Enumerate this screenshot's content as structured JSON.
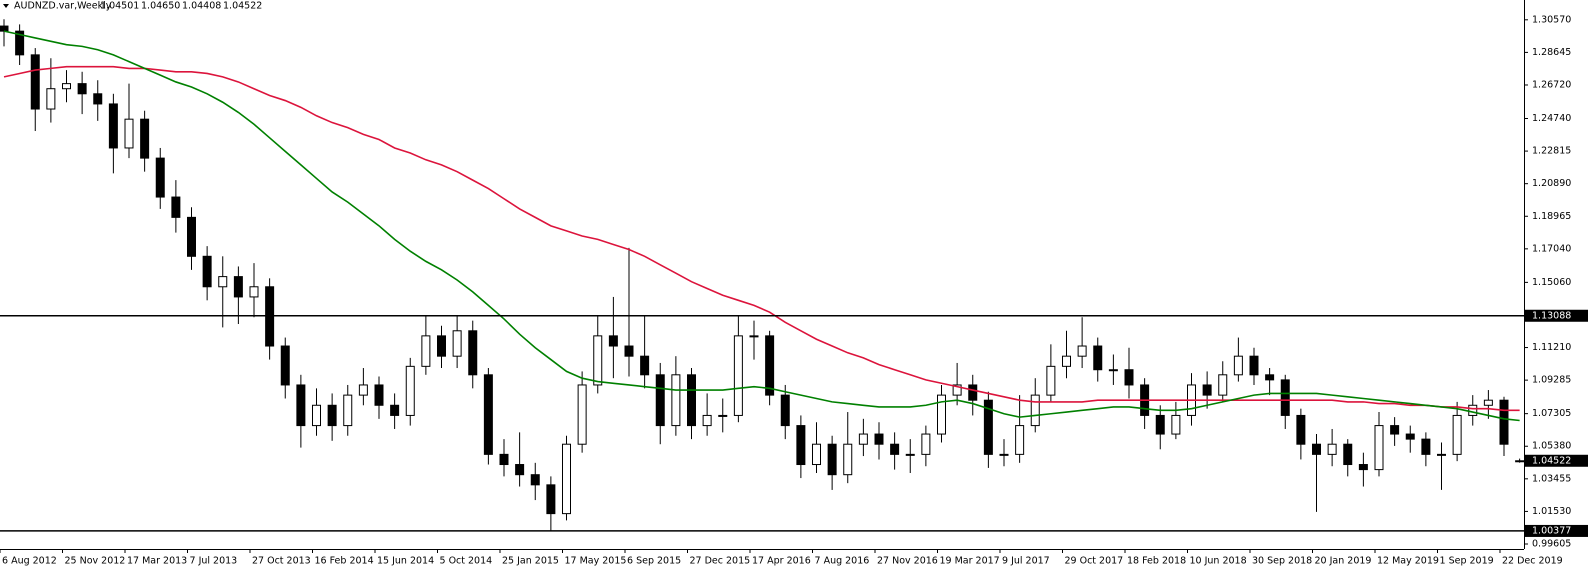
{
  "chart_data": {
    "type": "candlestick",
    "title": "AUDNZD.var,Weekly",
    "header_labels": [
      "1.04501",
      "1.04650",
      "1.04408",
      "1.04522"
    ],
    "categories": [
      "6 Aug 2012",
      null,
      null,
      null,
      "25 Nov 2012",
      null,
      null,
      null,
      "17 Mar 2013",
      null,
      null,
      null,
      "7 Jul 2013",
      null,
      null,
      null,
      "27 Oct 2013",
      null,
      null,
      null,
      "16 Feb 2014",
      null,
      null,
      null,
      "15 Jun 2014",
      null,
      null,
      null,
      "5 Oct 2014",
      null,
      null,
      null,
      "25 Jan 2015",
      null,
      null,
      null,
      "17 May 2015",
      null,
      null,
      null,
      "6 Sep 2015",
      null,
      null,
      null,
      "27 Dec 2015",
      null,
      null,
      null,
      "17 Apr 2016",
      null,
      null,
      null,
      "7 Aug 2016",
      null,
      null,
      null,
      "27 Nov 2016",
      null,
      null,
      null,
      "19 Mar 2017",
      null,
      null,
      null,
      "9 Jul 2017",
      null,
      null,
      null,
      "29 Oct 2017",
      null,
      null,
      null,
      "18 Feb 2018",
      null,
      null,
      null,
      "10 Jun 2018",
      null,
      null,
      null,
      "30 Sep 2018",
      null,
      null,
      null,
      "20 Jan 2019",
      null,
      null,
      null,
      "12 May 2019",
      null,
      null,
      null,
      "1 Sep 2019",
      null,
      null,
      null,
      "22 Dec 2019",
      null
    ],
    "open": [
      1.302,
      1.299,
      1.285,
      1.253,
      1.265,
      1.268,
      1.262,
      1.256,
      1.23,
      1.247,
      1.224,
      1.201,
      1.189,
      1.166,
      1.148,
      1.154,
      1.142,
      1.148,
      1.113,
      1.09,
      1.066,
      1.078,
      1.066,
      1.084,
      1.09,
      1.078,
      1.072,
      1.101,
      1.119,
      1.107,
      1.122,
      1.096,
      1.049,
      1.043,
      1.037,
      1.031,
      1.014,
      1.055,
      1.09,
      1.119,
      1.113,
      1.107,
      1.096,
      1.066,
      1.096,
      1.066,
      1.072,
      1.072,
      1.119,
      1.119,
      1.084,
      1.066,
      1.043,
      1.055,
      1.037,
      1.055,
      1.061,
      1.055,
      1.049,
      1.049,
      1.061,
      1.084,
      1.09,
      1.081,
      1.049,
      1.049,
      1.066,
      1.084,
      1.101,
      1.107,
      1.113,
      1.099,
      1.099,
      1.09,
      1.072,
      1.061,
      1.072,
      1.09,
      1.084,
      1.096,
      1.107,
      1.096,
      1.093,
      1.072,
      1.055,
      1.049,
      1.055,
      1.043,
      1.04,
      1.066,
      1.061,
      1.058,
      1.049,
      1.049,
      1.072,
      1.078,
      1.081,
      1.04501
    ],
    "high": [
      1.306,
      1.303,
      1.289,
      1.283,
      1.276,
      1.275,
      1.27,
      1.262,
      1.268,
      1.252,
      1.23,
      1.211,
      1.195,
      1.172,
      1.166,
      1.16,
      1.162,
      1.153,
      1.118,
      1.096,
      1.088,
      1.085,
      1.09,
      1.1,
      1.095,
      1.085,
      1.106,
      1.131,
      1.125,
      1.131,
      1.128,
      1.1,
      1.058,
      1.062,
      1.044,
      1.036,
      1.06,
      1.098,
      1.131,
      1.142,
      1.171,
      1.131,
      1.103,
      1.107,
      1.1,
      1.085,
      1.082,
      1.131,
      1.128,
      1.122,
      1.09,
      1.072,
      1.068,
      1.06,
      1.074,
      1.07,
      1.068,
      1.062,
      1.058,
      1.066,
      1.09,
      1.103,
      1.096,
      1.086,
      1.058,
      1.084,
      1.094,
      1.114,
      1.122,
      1.13,
      1.118,
      1.108,
      1.112,
      1.094,
      1.078,
      1.08,
      1.097,
      1.098,
      1.104,
      1.118,
      1.112,
      1.1,
      1.096,
      1.076,
      1.061,
      1.064,
      1.058,
      1.05,
      1.074,
      1.071,
      1.066,
      1.062,
      1.056,
      1.08,
      1.084,
      1.087,
      1.083,
      1.0465
    ],
    "low": [
      1.29,
      1.279,
      1.24,
      1.245,
      1.257,
      1.25,
      1.246,
      1.215,
      1.224,
      1.216,
      1.194,
      1.18,
      1.158,
      1.14,
      1.124,
      1.126,
      1.13,
      1.105,
      1.082,
      1.053,
      1.06,
      1.057,
      1.06,
      1.078,
      1.07,
      1.064,
      1.066,
      1.096,
      1.1,
      1.1,
      1.088,
      1.043,
      1.036,
      1.03,
      1.022,
      1.004,
      1.01,
      1.05,
      1.085,
      1.094,
      1.095,
      1.088,
      1.055,
      1.06,
      1.058,
      1.06,
      1.062,
      1.068,
      1.105,
      1.078,
      1.058,
      1.035,
      1.038,
      1.028,
      1.032,
      1.048,
      1.046,
      1.04,
      1.038,
      1.042,
      1.056,
      1.078,
      1.072,
      1.041,
      1.042,
      1.044,
      1.062,
      1.08,
      1.094,
      1.1,
      1.092,
      1.09,
      1.082,
      1.064,
      1.052,
      1.058,
      1.066,
      1.076,
      1.08,
      1.092,
      1.09,
      1.084,
      1.064,
      1.046,
      1.015,
      1.042,
      1.036,
      1.03,
      1.036,
      1.054,
      1.05,
      1.042,
      1.028,
      1.045,
      1.066,
      1.07,
      1.048,
      1.04408
    ],
    "close": [
      1.299,
      1.285,
      1.253,
      1.265,
      1.268,
      1.262,
      1.256,
      1.23,
      1.247,
      1.224,
      1.201,
      1.189,
      1.166,
      1.148,
      1.154,
      1.142,
      1.148,
      1.113,
      1.09,
      1.066,
      1.078,
      1.066,
      1.084,
      1.09,
      1.078,
      1.072,
      1.101,
      1.119,
      1.107,
      1.122,
      1.096,
      1.049,
      1.043,
      1.037,
      1.031,
      1.014,
      1.055,
      1.09,
      1.119,
      1.113,
      1.107,
      1.096,
      1.066,
      1.096,
      1.066,
      1.072,
      1.072,
      1.119,
      1.119,
      1.084,
      1.066,
      1.043,
      1.055,
      1.037,
      1.055,
      1.061,
      1.055,
      1.049,
      1.049,
      1.061,
      1.084,
      1.09,
      1.081,
      1.049,
      1.049,
      1.066,
      1.084,
      1.101,
      1.107,
      1.113,
      1.099,
      1.099,
      1.09,
      1.072,
      1.061,
      1.072,
      1.09,
      1.084,
      1.096,
      1.107,
      1.096,
      1.093,
      1.072,
      1.055,
      1.049,
      1.055,
      1.043,
      1.04,
      1.066,
      1.061,
      1.058,
      1.049,
      1.049,
      1.072,
      1.078,
      1.081,
      1.055,
      1.04522
    ],
    "up_color": "#ffffff",
    "down_color": "#000000",
    "wick_color": "#000000",
    "lines": [
      {
        "color": "#dc143c",
        "values": [
          1.272,
          1.274,
          1.276,
          1.277,
          1.278,
          1.278,
          1.278,
          1.278,
          1.277,
          1.277,
          1.276,
          1.275,
          1.275,
          1.274,
          1.272,
          1.269,
          1.265,
          1.261,
          1.258,
          1.254,
          1.249,
          1.245,
          1.242,
          1.238,
          1.235,
          1.23,
          1.227,
          1.223,
          1.22,
          1.216,
          1.211,
          1.206,
          1.2,
          1.194,
          1.189,
          1.184,
          1.181,
          1.178,
          1.176,
          1.173,
          1.17,
          1.166,
          1.161,
          1.156,
          1.151,
          1.147,
          1.143,
          1.14,
          1.137,
          1.133,
          1.127,
          1.122,
          1.117,
          1.113,
          1.109,
          1.106,
          1.102,
          1.099,
          1.096,
          1.093,
          1.091,
          1.089,
          1.087,
          1.085,
          1.083,
          1.081,
          1.08,
          1.08,
          1.08,
          1.08,
          1.081,
          1.081,
          1.081,
          1.081,
          1.081,
          1.081,
          1.081,
          1.081,
          1.081,
          1.081,
          1.081,
          1.081,
          1.081,
          1.081,
          1.081,
          1.081,
          1.08,
          1.08,
          1.079,
          1.079,
          1.078,
          1.078,
          1.077,
          1.077,
          1.076,
          1.076,
          1.075,
          1.075
        ]
      },
      {
        "color": "#008000",
        "values": [
          1.299,
          1.297,
          1.295,
          1.293,
          1.291,
          1.29,
          1.288,
          1.285,
          1.281,
          1.277,
          1.273,
          1.269,
          1.266,
          1.262,
          1.257,
          1.251,
          1.244,
          1.236,
          1.228,
          1.22,
          1.212,
          1.204,
          1.198,
          1.191,
          1.184,
          1.176,
          1.169,
          1.163,
          1.158,
          1.152,
          1.145,
          1.137,
          1.129,
          1.12,
          1.112,
          1.105,
          1.098,
          1.094,
          1.092,
          1.091,
          1.09,
          1.089,
          1.088,
          1.087,
          1.087,
          1.087,
          1.087,
          1.088,
          1.089,
          1.088,
          1.086,
          1.084,
          1.082,
          1.08,
          1.079,
          1.078,
          1.077,
          1.077,
          1.077,
          1.078,
          1.08,
          1.081,
          1.079,
          1.076,
          1.073,
          1.071,
          1.072,
          1.073,
          1.074,
          1.075,
          1.076,
          1.077,
          1.077,
          1.076,
          1.075,
          1.075,
          1.076,
          1.078,
          1.08,
          1.082,
          1.084,
          1.085,
          1.085,
          1.085,
          1.085,
          1.084,
          1.083,
          1.082,
          1.081,
          1.08,
          1.079,
          1.078,
          1.077,
          1.076,
          1.074,
          1.072,
          1.07,
          1.069
        ]
      }
    ],
    "hlines": [
      1.13088,
      1.00377
    ],
    "ylim": [
      0.9931,
      1.3174
    ],
    "yticks": [
      {
        "value": 1.3057,
        "label": "1.30570"
      },
      {
        "value": 1.28645,
        "label": "1.28645"
      },
      {
        "value": 1.2672,
        "label": "1.26720"
      },
      {
        "value": 1.2474,
        "label": "1.24740"
      },
      {
        "value": 1.22815,
        "label": "1.22815"
      },
      {
        "value": 1.2089,
        "label": "1.20890"
      },
      {
        "value": 1.18965,
        "label": "1.18965"
      },
      {
        "value": 1.1704,
        "label": "1.17040"
      },
      {
        "value": 1.1506,
        "label": "1.15060"
      },
      {
        "value": 1.1121,
        "label": "1.11210"
      },
      {
        "value": 1.09285,
        "label": "1.09285"
      },
      {
        "value": 1.07305,
        "label": "1.07305"
      },
      {
        "value": 1.0538,
        "label": "1.05380"
      },
      {
        "value": 1.03455,
        "label": "1.03455"
      },
      {
        "value": 1.0153,
        "label": "1.01530"
      },
      {
        "value": 0.99605,
        "label": "0.99605"
      }
    ]
  }
}
